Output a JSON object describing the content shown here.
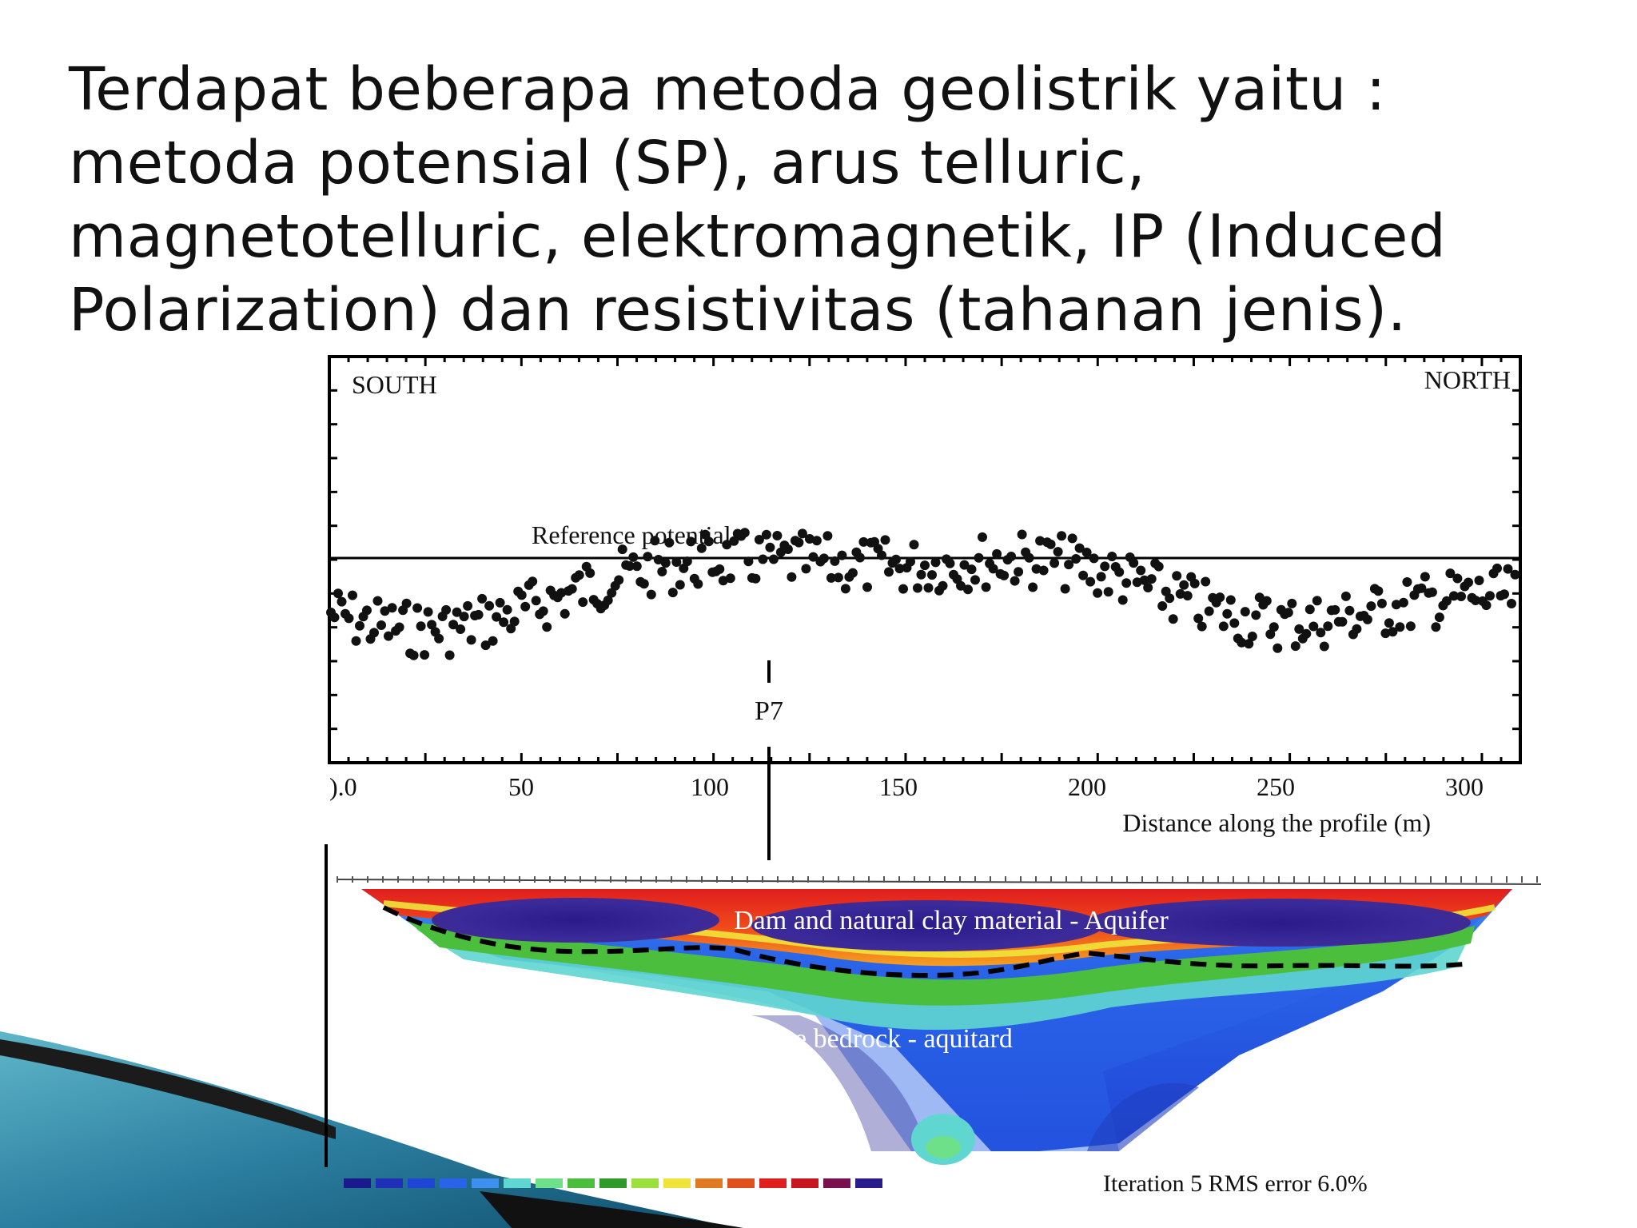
{
  "slide": {
    "body_lines": [
      "Terdapat beberapa metoda geolistrik yaitu :",
      "metoda potensial (SP), arus telluric,",
      "magnetotelluric, elektromagnetik, IP (Induced",
      "Polarization) dan resistivitas (tahanan jenis)."
    ]
  },
  "figure": {
    "top_panel": {
      "left_label": "SOUTH",
      "right_label": "NORTH",
      "reference_label": "Reference potential",
      "marker_label": "P7",
      "x_ticks": [
        ").0",
        "50",
        "100",
        "150",
        "200",
        "250",
        "300"
      ],
      "x_axis_label": "Distance along the profile (m)"
    },
    "bottom_panel": {
      "upper_layer_label": "Dam and natural clay material - Aquifer",
      "lower_layer_label": "Claystone bedrock - aquitard",
      "iteration_text": "Iteration 5  RMS error 6.0%",
      "color_scale": [
        "#1a1a8c",
        "#1f2fb8",
        "#1f45d6",
        "#2a63e8",
        "#3f8ff0",
        "#5fd6d0",
        "#6fe08a",
        "#4bbf3d",
        "#2f9a2a",
        "#9be03c",
        "#f0e43a",
        "#e07a20",
        "#e0501a",
        "#e01e1e",
        "#c81620",
        "#7a1050",
        "#2a1a8a"
      ]
    }
  }
}
